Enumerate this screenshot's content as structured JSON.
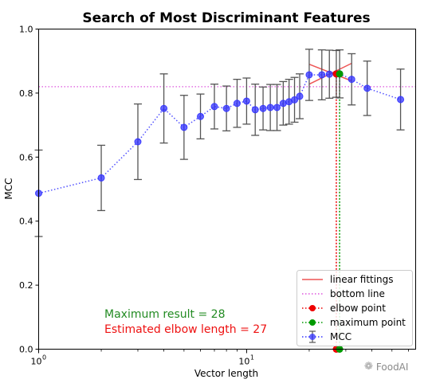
{
  "chart_data": {
    "type": "line",
    "title": "Search of Most Discriminant Features",
    "xlabel": "Vector length",
    "ylabel": "MCC",
    "xscale": "log",
    "xlim": [
      1,
      65
    ],
    "ylim": [
      0,
      1.0
    ],
    "x_ticks": [
      1,
      10
    ],
    "x_tick_labels": [
      {
        "base": "10",
        "exp": "0"
      },
      {
        "base": "10",
        "exp": "1"
      }
    ],
    "y_ticks": [
      0.0,
      0.2,
      0.4,
      0.6,
      0.8,
      1.0
    ],
    "y_tick_labels": [
      "0.0",
      "0.2",
      "0.4",
      "0.6",
      "0.8",
      "1.0"
    ],
    "grid": false,
    "legend_position": "lower-right",
    "series": [
      {
        "name": "MCC",
        "kind": "errorbar",
        "color": "#3333ff",
        "error_color": "#555555",
        "x": [
          1,
          2,
          3,
          4,
          5,
          6,
          7,
          8,
          9,
          10,
          11,
          12,
          13,
          14,
          15,
          16,
          17,
          18,
          20,
          23,
          25,
          27,
          28,
          32,
          38,
          55
        ],
        "y": [
          0.487,
          0.535,
          0.648,
          0.752,
          0.693,
          0.727,
          0.758,
          0.752,
          0.768,
          0.775,
          0.748,
          0.752,
          0.755,
          0.755,
          0.768,
          0.773,
          0.779,
          0.79,
          0.857,
          0.857,
          0.859,
          0.86,
          0.86,
          0.843,
          0.815,
          0.78
        ],
        "yerr": [
          0.135,
          0.102,
          0.118,
          0.108,
          0.1,
          0.07,
          0.07,
          0.07,
          0.075,
          0.072,
          0.08,
          0.067,
          0.072,
          0.072,
          0.068,
          0.07,
          0.07,
          0.07,
          0.08,
          0.078,
          0.075,
          0.073,
          0.075,
          0.08,
          0.085,
          0.095
        ]
      },
      {
        "name": "linear fittings",
        "kind": "lines",
        "color": "#ee5555",
        "segments": [
          {
            "x": [
              20,
              32
            ],
            "y": [
              0.828,
              0.893
            ]
          },
          {
            "x": [
              20,
              32
            ],
            "y": [
              0.89,
              0.838
            ]
          }
        ]
      },
      {
        "name": "bottom line",
        "kind": "hline",
        "color": "#dd55dd",
        "y": 0.82
      },
      {
        "name": "elbow point",
        "kind": "point",
        "color": "#ee0000",
        "x": 27,
        "y": 0.86,
        "vline_color": "#ee0000"
      },
      {
        "name": "maximum point",
        "kind": "point",
        "color": "#009900",
        "x": 28,
        "y": 0.86,
        "vline_color": "#009900"
      }
    ],
    "annotations": [
      {
        "text": "Maximum result = 28",
        "color": "#228B22"
      },
      {
        "text": "Estimated elbow length = 27",
        "color": "#ee1111"
      }
    ]
  },
  "watermark": {
    "text": "FoodAI",
    "icon": "wechat-icon"
  }
}
